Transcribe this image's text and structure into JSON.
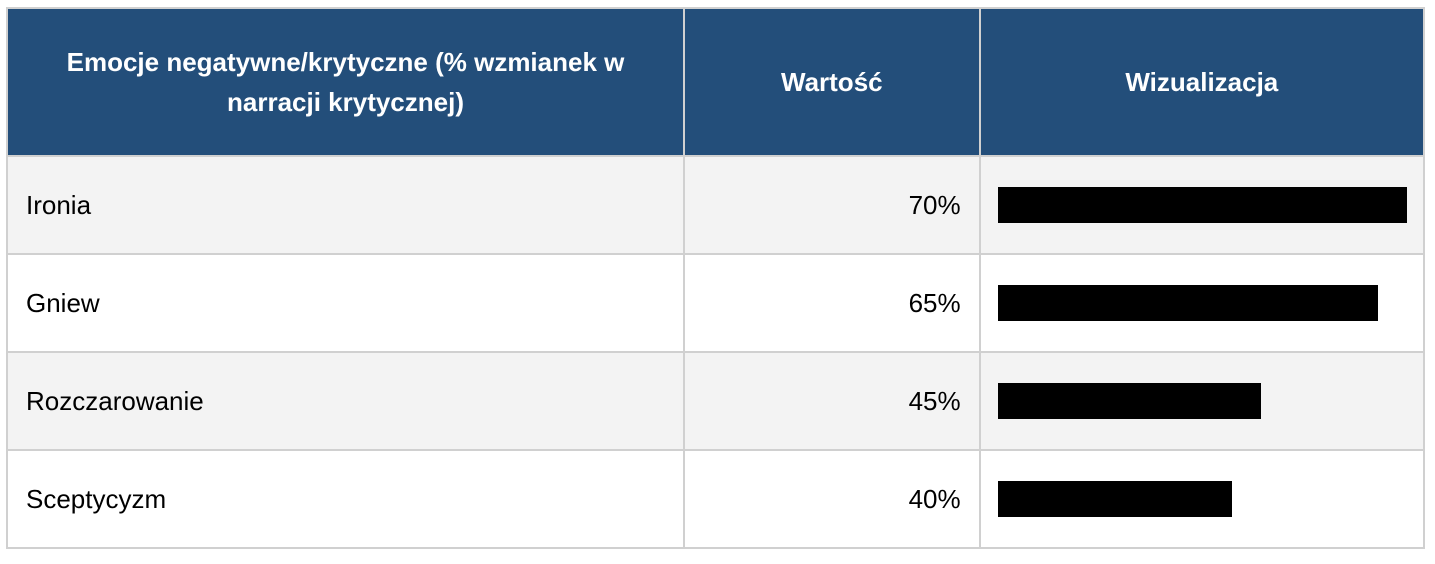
{
  "table": {
    "header": [
      "Emocje negatywne/krytyczne (% wzmianek w narracji krytycznej)",
      "Wartość",
      "Wizualizacja"
    ],
    "rows": [
      {
        "label": "Ironia",
        "value": 70,
        "value_label": "70%"
      },
      {
        "label": "Gniew",
        "value": 65,
        "value_label": "65%"
      },
      {
        "label": "Rozczarowanie",
        "value": 45,
        "value_label": "45%"
      },
      {
        "label": "Sceptycyzm",
        "value": 40,
        "value_label": "40%"
      }
    ]
  }
}
